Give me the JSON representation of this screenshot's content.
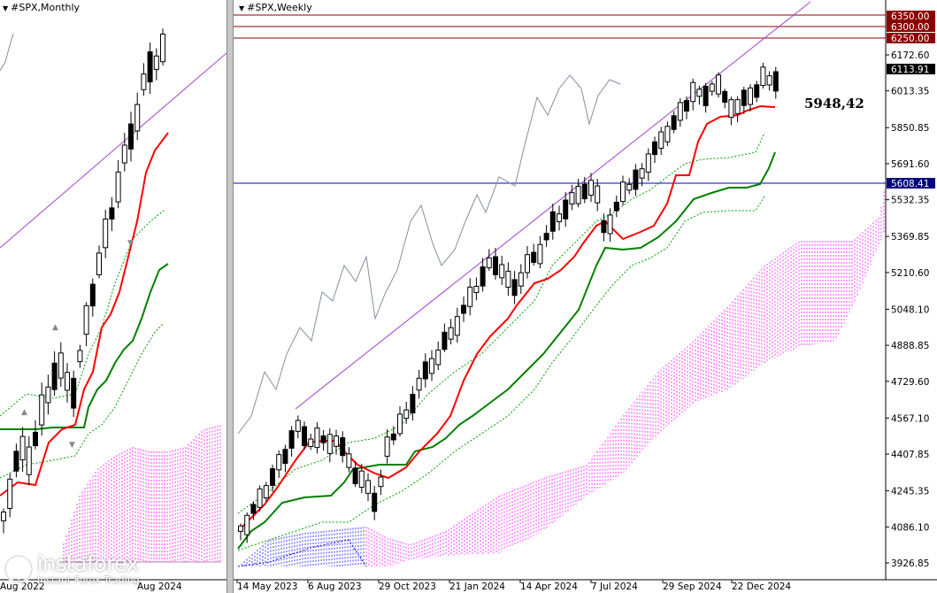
{
  "chart_data": [
    {
      "type": "candlestick",
      "title": "#SPX,Monthly",
      "x_labels_visible": [
        "Aug 2022",
        "Aug 2024"
      ],
      "grid": false,
      "indicators": [
        "Ichimoku cloud",
        "Tenkan-sen (red)",
        "Kijun-sen (green)",
        "Dotted envelope lines (green)",
        "Trend line (purple)"
      ],
      "colors": {
        "bull": "#ffffff",
        "bear": "#000000",
        "tenkan": "#ff0000",
        "kijun": "#008000",
        "envelope": "#00a000",
        "trend": "#a040d0",
        "cloud": "#ff00ff",
        "cloud_bear": "#0000ff"
      }
    },
    {
      "type": "candlestick",
      "title": "#SPX,Weekly",
      "x_labels": [
        "14 May 2023",
        "6 Aug 2023",
        "29 Oct 2023",
        "21 Jan 2024",
        "14 Apr 2024",
        "7 Jul 2024",
        "29 Sep 2024",
        "22 Dec 2024"
      ],
      "y_ticks": [
        "6172.60",
        "6013.35",
        "5850.85",
        "5691.60",
        "5532.35",
        "5369.85",
        "5210.60",
        "5048.10",
        "4888.85",
        "4729.60",
        "4567.10",
        "4407.85",
        "4245.35",
        "4086.10",
        "3926.85"
      ],
      "ylim": [
        3880,
        6400
      ],
      "price_labels": [
        {
          "text": "6350.00",
          "value": 6350,
          "color": "#8b0000"
        },
        {
          "text": "6300.00",
          "value": 6300,
          "color": "#8b0000"
        },
        {
          "text": "6250.00",
          "value": 6250,
          "color": "#8b0000"
        },
        {
          "text": "6113.91",
          "value": 6113.91,
          "color": "#000000"
        },
        {
          "text": "5608.41",
          "value": 5608.41,
          "color": "#000080"
        }
      ],
      "annotation": "5948,42",
      "grid": false,
      "indicators": [
        "Ichimoku cloud",
        "Tenkan-sen (red)",
        "Kijun-sen (green)",
        "Chikou span (grey)",
        "Dotted envelope lines (green)",
        "Trend line (purple)",
        "Horizontal level 5608.41 (blue)",
        "Resistance levels 6250/6300/6350 (dark red)"
      ],
      "colors": {
        "bull": "#ffffff",
        "bear": "#000000",
        "tenkan": "#ff0000",
        "kijun": "#008000",
        "chikou": "#8090a0",
        "envelope": "#00a000",
        "trend": "#a040d0",
        "cloud": "#ff00ff",
        "cloud_bear": "#0000ff",
        "level": "#0000c0"
      }
    }
  ],
  "watermark": {
    "brand": "instaforex",
    "tagline": "Instant Forex Trading"
  }
}
